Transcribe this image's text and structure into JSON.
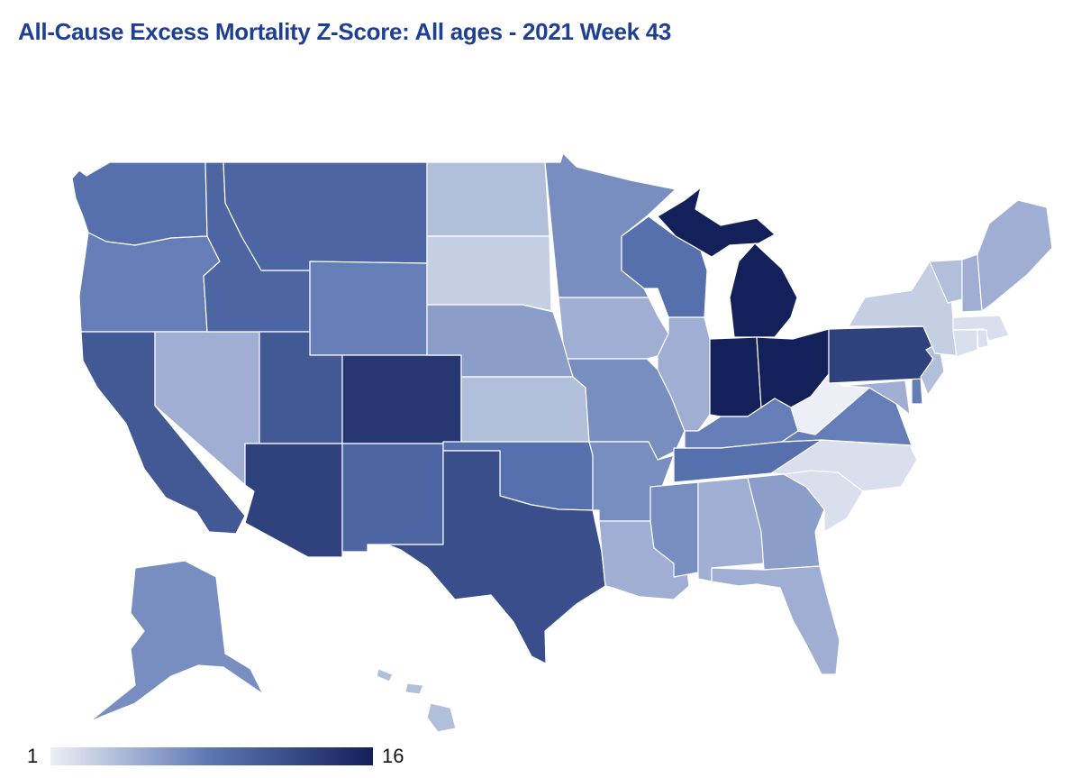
{
  "title": "All-Cause Excess Mortality Z-Score: All ages - 2021 Week 43",
  "legend": {
    "min": "1",
    "max": "16"
  },
  "colors": {
    "title": "#1f3f93",
    "scale_low": "#eceff5",
    "scale_mid": "#5b76b4",
    "scale_high": "#13205a"
  },
  "z_scores": {
    "WA": 9,
    "OR": 8,
    "CA": 11,
    "NV": 5,
    "ID": 10,
    "MT": 10,
    "WY": 8,
    "UT": 11,
    "AZ": 13,
    "CO": 14,
    "NM": 10,
    "TX": 12,
    "ND": 4,
    "SD": 3,
    "NE": 6,
    "KS": 4,
    "OK": 9,
    "MN": 7,
    "IA": 5,
    "MO": 7,
    "AR": 7,
    "LA": 5,
    "WI": 9,
    "IL": 5,
    "MI": 16,
    "IN": 16,
    "OH": 16,
    "KY": 8,
    "TN": 9,
    "MS": 7,
    "AL": 5,
    "GA": 6,
    "FL": 5,
    "SC": 2,
    "NC": 2,
    "VA": 8,
    "WV": 1,
    "PA": 13,
    "NY": 3,
    "VT": 4,
    "NH": 5,
    "ME": 5,
    "MA": 2,
    "CT": 2,
    "RI": 2,
    "NJ": 4,
    "DE": 8,
    "MD": 5,
    "AK": 7,
    "HI": 4
  }
}
